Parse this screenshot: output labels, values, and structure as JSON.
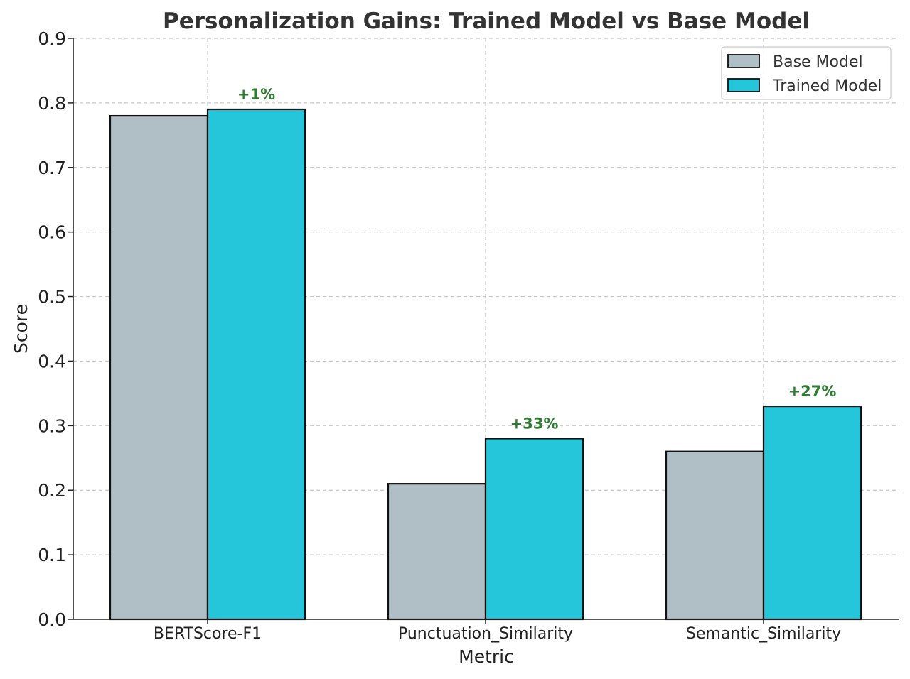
{
  "chart_data": {
    "type": "bar",
    "title": "Personalization Gains: Trained Model vs Base Model",
    "xlabel": "Metric",
    "ylabel": "Score",
    "ylim": [
      0,
      0.9
    ],
    "yticks": [
      "0.0",
      "0.1",
      "0.2",
      "0.3",
      "0.4",
      "0.5",
      "0.6",
      "0.7",
      "0.8",
      "0.9"
    ],
    "categories": [
      "BERTScore-F1",
      "Punctuation_Similarity",
      "Semantic_Similarity"
    ],
    "series": [
      {
        "name": "Base Model",
        "color": "#b0bec5",
        "values": [
          0.78,
          0.21,
          0.26
        ]
      },
      {
        "name": "Trained Model",
        "color": "#26c6da",
        "values": [
          0.79,
          0.28,
          0.33
        ]
      }
    ],
    "annotations": [
      "+1%",
      "+33%",
      "+27%"
    ],
    "annotation_color": "#2e7d32",
    "grid": true,
    "legend_position": "top-right"
  }
}
